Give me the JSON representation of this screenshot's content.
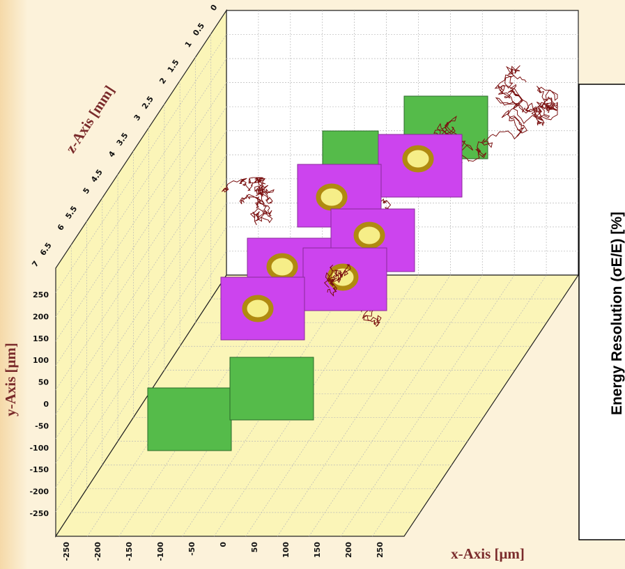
{
  "figure": {
    "z_axis": {
      "title": "z-Axis [mm]",
      "ticks": [
        "0",
        "0.5",
        "1",
        "1.5",
        "2",
        "2.5",
        "3",
        "3.5",
        "4",
        "4.5",
        "5",
        "5.5",
        "6",
        "6.5",
        "7"
      ]
    },
    "y_axis": {
      "title": "y-Axis [μm]",
      "ticks": [
        "250",
        "200",
        "150",
        "100",
        "50",
        "0",
        "-50",
        "-100",
        "-150",
        "-200",
        "-250"
      ]
    },
    "x_axis": {
      "title": "x-Axis [μm]",
      "ticks": [
        "-250",
        "-200",
        "-150",
        "-100",
        "-50",
        "0",
        "50",
        "100",
        "150",
        "200",
        "250"
      ]
    },
    "side_panel": {
      "label": "Energy Resolution (σE/E) [%]"
    }
  }
}
